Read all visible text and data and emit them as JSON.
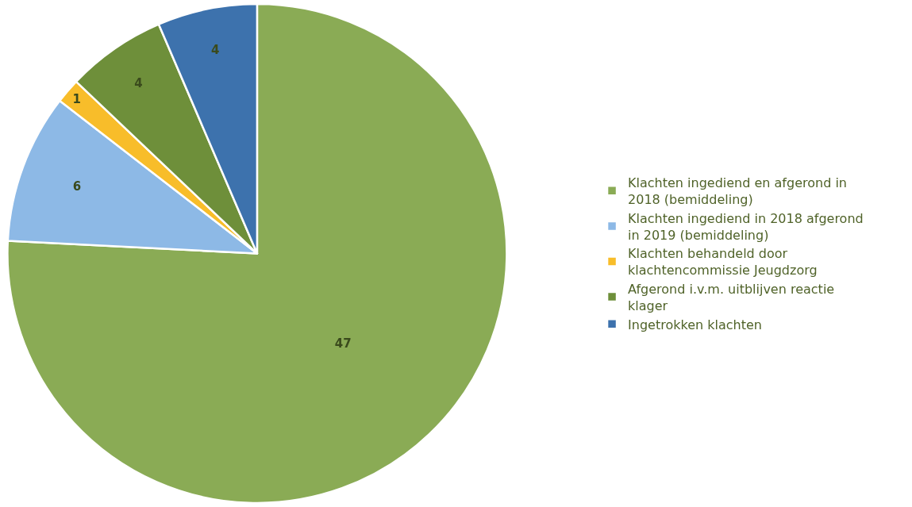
{
  "chart_data": {
    "type": "pie",
    "categories": [
      "Klachten ingediend en afgerond in 2018 (bemiddeling)",
      "Klachten ingediend in 2018 afgerond in 2019 (bemiddeling)",
      "Klachten behandeld door klachtencommissie Jeugdzorg",
      "Afgerond i.v.m. uitblijven reactie klager",
      "Ingetrokken klachten"
    ],
    "values": [
      47,
      6,
      1,
      4,
      4
    ],
    "colors": [
      "#8aab55",
      "#8db9e6",
      "#f8bd2a",
      "#6e8f3a",
      "#3d72ad"
    ],
    "data_labels": true,
    "legend": "right"
  }
}
